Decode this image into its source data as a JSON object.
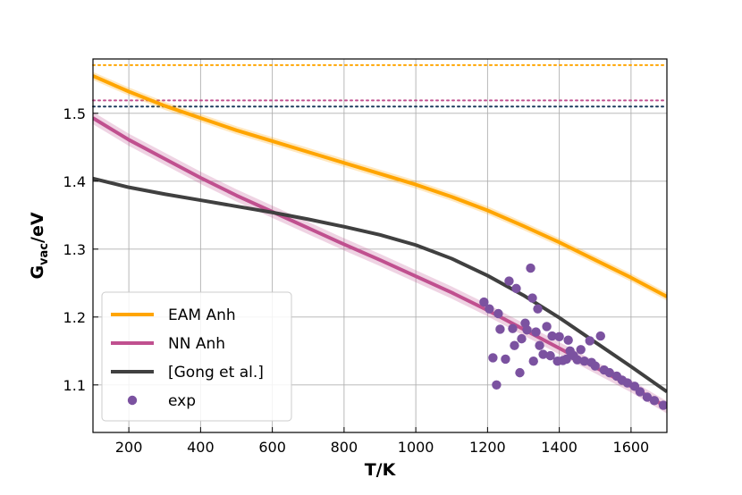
{
  "chart_data": {
    "type": "line",
    "title": "",
    "xlabel": "T/K",
    "ylabel_main": "G",
    "ylabel_sub": "vac",
    "ylabel_unit": "/eV",
    "xlim": [
      100,
      1700
    ],
    "ylim": [
      1.03,
      1.58
    ],
    "xticks": [
      200,
      400,
      600,
      800,
      1000,
      1200,
      1400,
      1600
    ],
    "yticks": [
      1.1,
      1.2,
      1.3,
      1.4,
      1.5
    ],
    "ytick_labels": [
      "1.1",
      "1.2",
      "1.3",
      "1.4",
      "1.5"
    ],
    "grid": true,
    "legend_position": "lower-left",
    "hlines": [
      {
        "name": "EAM ref",
        "y": 1.571,
        "color": "#ffa500",
        "style": "dotted"
      },
      {
        "name": "NN ref",
        "y": 1.519,
        "color": "#c0508f",
        "style": "dotted"
      },
      {
        "name": "Gong ref",
        "y": 1.51,
        "color": "#1b3a5c",
        "style": "dotted"
      }
    ],
    "series": [
      {
        "name": "EAM Anh",
        "kind": "line",
        "color": "#ffa500",
        "band": 0.006,
        "x": [
          100,
          200,
          300,
          400,
          500,
          600,
          700,
          800,
          900,
          1000,
          1100,
          1200,
          1300,
          1400,
          1500,
          1600,
          1700
        ],
        "y": [
          1.555,
          1.532,
          1.511,
          1.493,
          1.475,
          1.459,
          1.443,
          1.427,
          1.411,
          1.395,
          1.377,
          1.357,
          1.334,
          1.31,
          1.284,
          1.258,
          1.23
        ]
      },
      {
        "name": "NN Anh",
        "kind": "line",
        "color": "#c0508f",
        "band": 0.009,
        "x": [
          100,
          200,
          300,
          400,
          500,
          600,
          700,
          800,
          900,
          1000,
          1100,
          1200,
          1300,
          1400,
          1500,
          1600,
          1700
        ],
        "y": [
          1.493,
          1.461,
          1.433,
          1.405,
          1.379,
          1.355,
          1.331,
          1.307,
          1.284,
          1.26,
          1.236,
          1.21,
          1.182,
          1.154,
          1.126,
          1.098,
          1.067
        ]
      },
      {
        "name": "[Gong et al.]",
        "kind": "line",
        "color": "#404040",
        "x": [
          100,
          200,
          300,
          400,
          500,
          600,
          700,
          800,
          900,
          1000,
          1100,
          1200,
          1300,
          1400,
          1500,
          1600,
          1700
        ],
        "y": [
          1.404,
          1.391,
          1.381,
          1.372,
          1.363,
          1.354,
          1.344,
          1.333,
          1.321,
          1.306,
          1.286,
          1.261,
          1.232,
          1.199,
          1.163,
          1.127,
          1.09
        ]
      },
      {
        "name": "exp",
        "kind": "scatter",
        "color": "#7b52a0",
        "points": [
          [
            1190,
            1.222
          ],
          [
            1205,
            1.212
          ],
          [
            1215,
            1.14
          ],
          [
            1225,
            1.1
          ],
          [
            1230,
            1.205
          ],
          [
            1235,
            1.182
          ],
          [
            1250,
            1.138
          ],
          [
            1260,
            1.253
          ],
          [
            1270,
            1.183
          ],
          [
            1275,
            1.158
          ],
          [
            1280,
            1.242
          ],
          [
            1290,
            1.118
          ],
          [
            1295,
            1.168
          ],
          [
            1305,
            1.191
          ],
          [
            1310,
            1.181
          ],
          [
            1320,
            1.272
          ],
          [
            1325,
            1.228
          ],
          [
            1328,
            1.135
          ],
          [
            1335,
            1.178
          ],
          [
            1340,
            1.212
          ],
          [
            1345,
            1.158
          ],
          [
            1355,
            1.145
          ],
          [
            1365,
            1.186
          ],
          [
            1375,
            1.143
          ],
          [
            1380,
            1.172
          ],
          [
            1395,
            1.135
          ],
          [
            1400,
            1.171
          ],
          [
            1410,
            1.136
          ],
          [
            1420,
            1.138
          ],
          [
            1425,
            1.166
          ],
          [
            1430,
            1.15
          ],
          [
            1440,
            1.143
          ],
          [
            1450,
            1.137
          ],
          [
            1460,
            1.152
          ],
          [
            1470,
            1.135
          ],
          [
            1485,
            1.165
          ],
          [
            1490,
            1.133
          ],
          [
            1500,
            1.128
          ],
          [
            1515,
            1.172
          ],
          [
            1525,
            1.122
          ],
          [
            1540,
            1.118
          ],
          [
            1560,
            1.113
          ],
          [
            1575,
            1.107
          ],
          [
            1590,
            1.103
          ],
          [
            1610,
            1.098
          ],
          [
            1625,
            1.09
          ],
          [
            1645,
            1.082
          ],
          [
            1665,
            1.077
          ],
          [
            1690,
            1.07
          ]
        ]
      }
    ]
  }
}
